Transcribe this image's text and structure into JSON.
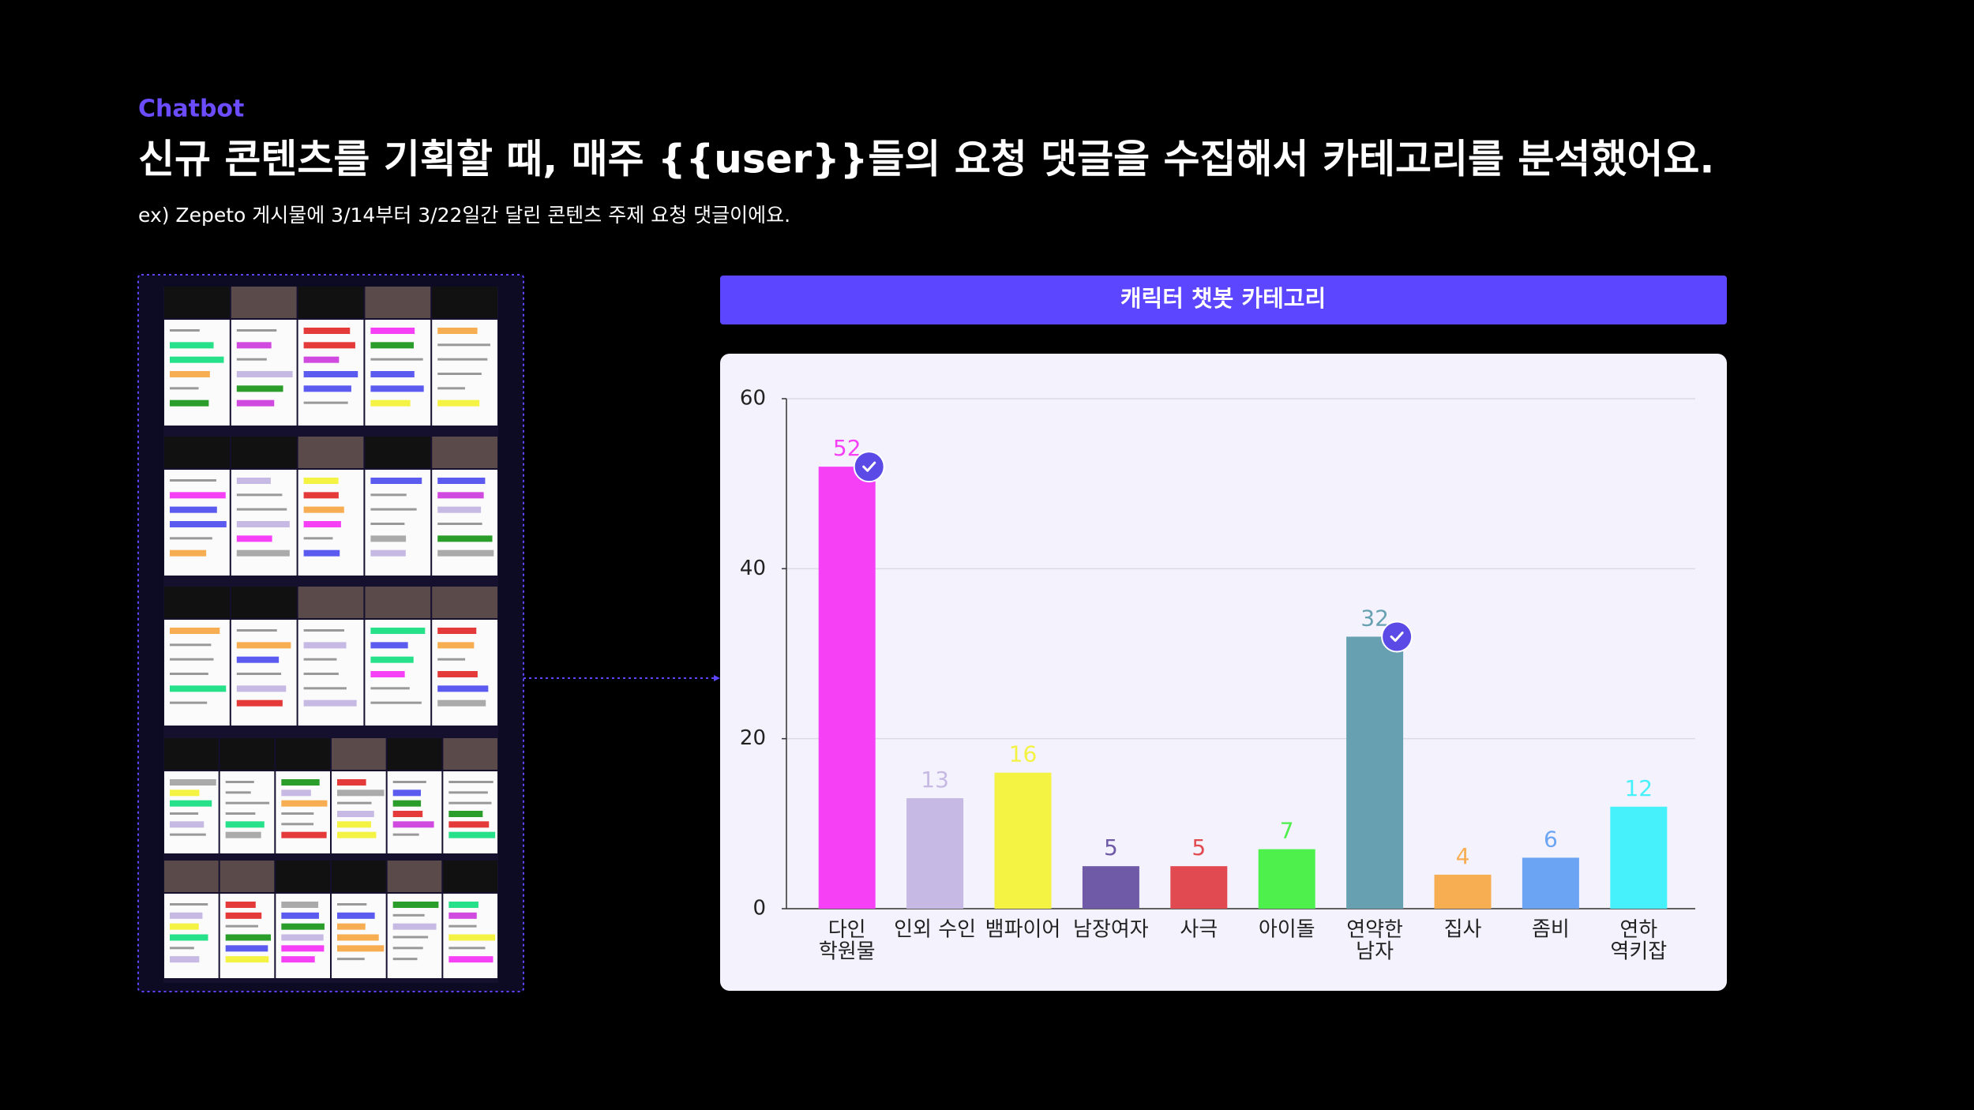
{
  "header": {
    "label": "Chatbot",
    "title": "신규 콘텐츠를 기획할 때, 매주 {{user}}들의 요청 댓글을 수집해서 카테고리를 분석했어요.",
    "subtitle": "ex) Zepeto 게시물에 3/14부터 3/22일간 달린 콘텐츠 주제 요청 댓글이에요."
  },
  "chart_data": {
    "type": "bar",
    "title": "캐릭터 챗봇 카테고리",
    "categories": [
      "다인\n학원물",
      "인외 수인",
      "뱀파이어",
      "남장여자",
      "사극",
      "아이돌",
      "연약한\n남자",
      "집사",
      "좀비",
      "연하\n역키잡"
    ],
    "values": [
      52,
      13,
      16,
      5,
      5,
      7,
      32,
      4,
      6,
      12
    ],
    "colors": [
      "#f640f6",
      "#c6b9e3",
      "#f4f242",
      "#6e5aa6",
      "#e04a50",
      "#4ef04c",
      "#67a1b1",
      "#f7ae52",
      "#6ba4f3",
      "#47f1fb"
    ],
    "highlighted": [
      true,
      false,
      false,
      false,
      false,
      false,
      true,
      false,
      false,
      false
    ],
    "ylim": [
      0,
      60
    ],
    "yticks": [
      0,
      20,
      40,
      60
    ],
    "grid": true
  }
}
